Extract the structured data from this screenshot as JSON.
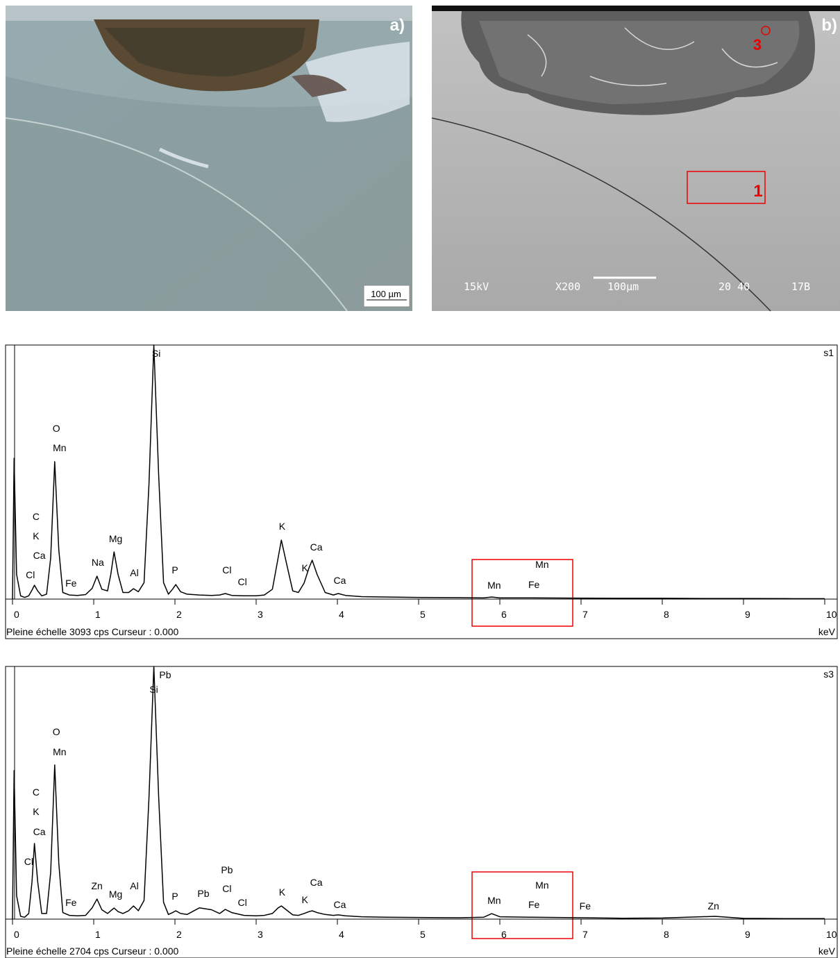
{
  "panels": [
    {
      "label": "a)",
      "scale": "100 µm"
    },
    {
      "label": "b)",
      "point": "3",
      "area": "1",
      "voltage": "15kV",
      "magnification": "X200",
      "scale": "100µm",
      "working_distance": "20 40",
      "session": "17B"
    }
  ],
  "chart_data": [
    {
      "type": "line",
      "label": "s1",
      "footer": "Pleine échelle 3093 cps  Curseur : 0.000",
      "xlabel": "keV",
      "xlim": [
        0,
        10
      ],
      "ylim": [
        0,
        3093
      ],
      "xticks": [
        0,
        1,
        2,
        3,
        4,
        5,
        6,
        7,
        8,
        9,
        10
      ],
      "color": "#000000",
      "x": [
        0,
        0.02,
        0.05,
        0.1,
        0.15,
        0.2,
        0.24,
        0.27,
        0.31,
        0.36,
        0.42,
        0.47,
        0.52,
        0.57,
        0.62,
        0.7,
        0.8,
        0.9,
        0.98,
        1.04,
        1.1,
        1.17,
        1.21,
        1.25,
        1.3,
        1.36,
        1.43,
        1.49,
        1.55,
        1.62,
        1.68,
        1.74,
        1.8,
        1.86,
        1.92,
        1.97,
        2.01,
        2.07,
        2.15,
        2.3,
        2.45,
        2.55,
        2.62,
        2.7,
        2.85,
        3.0,
        3.1,
        3.2,
        3.27,
        3.31,
        3.37,
        3.45,
        3.52,
        3.59,
        3.65,
        3.69,
        3.75,
        3.85,
        3.95,
        4.01,
        4.1,
        4.3,
        4.6,
        5.0,
        5.5,
        5.8,
        5.9,
        6.0,
        6.4,
        7.0,
        7.5,
        8.0,
        8.5,
        9.0,
        9.5,
        10.0
      ],
      "values": [
        0,
        1715,
        300,
        40,
        20,
        40,
        110,
        169,
        100,
        40,
        60,
        500,
        1673,
        600,
        80,
        50,
        45,
        55,
        130,
        279,
        120,
        100,
        300,
        575,
        300,
        80,
        80,
        127,
        90,
        200,
        1400,
        3093,
        1500,
        200,
        60,
        120,
        177,
        90,
        60,
        50,
        45,
        50,
        68,
        45,
        40,
        40,
        50,
        120,
        500,
        718,
        450,
        100,
        80,
        194,
        380,
        473,
        300,
        80,
        50,
        68,
        45,
        30,
        25,
        20,
        18,
        15,
        25,
        15,
        15,
        12,
        10,
        10,
        8,
        8,
        6,
        5
      ],
      "annotations": [
        {
          "text": "Si",
          "x": 1.77,
          "y": 2950
        },
        {
          "text": "O",
          "x": 0.54,
          "y": 2036
        },
        {
          "text": "Mn",
          "x": 0.58,
          "y": 1800
        },
        {
          "text": "C",
          "x": 0.29,
          "y": 963
        },
        {
          "text": "K",
          "x": 0.29,
          "y": 727
        },
        {
          "text": "Ca",
          "x": 0.33,
          "y": 490
        },
        {
          "text": "Cl",
          "x": 0.22,
          "y": 254
        },
        {
          "text": "Fe",
          "x": 0.72,
          "y": 152
        },
        {
          "text": "Na",
          "x": 1.05,
          "y": 406
        },
        {
          "text": "Mg",
          "x": 1.27,
          "y": 693
        },
        {
          "text": "Al",
          "x": 1.5,
          "y": 279
        },
        {
          "text": "P",
          "x": 2.0,
          "y": 313
        },
        {
          "text": "Cl",
          "x": 2.64,
          "y": 313
        },
        {
          "text": "Cl",
          "x": 2.83,
          "y": 169
        },
        {
          "text": "K",
          "x": 3.32,
          "y": 845
        },
        {
          "text": "Ca",
          "x": 3.74,
          "y": 592
        },
        {
          "text": "K",
          "x": 3.6,
          "y": 338
        },
        {
          "text": "Ca",
          "x": 4.03,
          "y": 186
        },
        {
          "text": "Mn",
          "x": 5.93,
          "y": 127
        },
        {
          "text": "Fe",
          "x": 6.42,
          "y": 135
        },
        {
          "text": "Mn",
          "x": 6.52,
          "y": 380
        }
      ]
    },
    {
      "type": "line",
      "label": "s3",
      "footer": "Pleine échelle 2704 cps  Curseur : 0.000",
      "xlabel": "keV",
      "xlim": [
        0,
        10
      ],
      "ylim": [
        0,
        2704
      ],
      "xticks": [
        0,
        1,
        2,
        3,
        4,
        5,
        6,
        7,
        8,
        9,
        10
      ],
      "color": "#000000",
      "x": [
        0,
        0.02,
        0.05,
        0.1,
        0.15,
        0.2,
        0.24,
        0.27,
        0.31,
        0.36,
        0.42,
        0.47,
        0.52,
        0.57,
        0.62,
        0.7,
        0.8,
        0.9,
        0.98,
        1.04,
        1.1,
        1.17,
        1.21,
        1.25,
        1.3,
        1.36,
        1.43,
        1.49,
        1.55,
        1.62,
        1.68,
        1.74,
        1.8,
        1.86,
        1.92,
        1.97,
        2.01,
        2.07,
        2.15,
        2.3,
        2.45,
        2.55,
        2.62,
        2.7,
        2.85,
        3.0,
        3.1,
        3.2,
        3.27,
        3.31,
        3.37,
        3.45,
        3.52,
        3.59,
        3.65,
        3.69,
        3.75,
        3.85,
        3.95,
        4.01,
        4.1,
        4.3,
        4.6,
        5.0,
        5.5,
        5.8,
        5.9,
        6.0,
        6.4,
        7.0,
        7.5,
        8.0,
        8.65,
        9.0,
        9.5,
        10.0
      ],
      "values": [
        0,
        1590,
        250,
        30,
        20,
        60,
        400,
        810,
        400,
        60,
        60,
        500,
        1650,
        600,
        70,
        40,
        35,
        40,
        120,
        215,
        100,
        60,
        90,
        119,
        80,
        60,
        90,
        141,
        90,
        200,
        1300,
        2704,
        1300,
        180,
        50,
        70,
        89,
        60,
        50,
        120,
        100,
        60,
        104,
        70,
        40,
        35,
        40,
        60,
        120,
        141,
        100,
        45,
        40,
        60,
        80,
        89,
        70,
        50,
        40,
        45,
        35,
        25,
        20,
        18,
        15,
        20,
        59,
        25,
        20,
        15,
        10,
        12,
        30,
        8,
        6,
        5
      ],
      "annotations": [
        {
          "text": "Pb",
          "x": 1.88,
          "y": 2578
        },
        {
          "text": "Si",
          "x": 1.74,
          "y": 2422
        },
        {
          "text": "O",
          "x": 0.54,
          "y": 1969
        },
        {
          "text": "Mn",
          "x": 0.58,
          "y": 1753
        },
        {
          "text": "C",
          "x": 0.29,
          "y": 1322
        },
        {
          "text": "K",
          "x": 0.29,
          "y": 1114
        },
        {
          "text": "Ca",
          "x": 0.33,
          "y": 899
        },
        {
          "text": "Cl",
          "x": 0.2,
          "y": 580
        },
        {
          "text": "Fe",
          "x": 0.72,
          "y": 141
        },
        {
          "text": "Zn",
          "x": 1.04,
          "y": 319
        },
        {
          "text": "Mg",
          "x": 1.27,
          "y": 230
        },
        {
          "text": "Al",
          "x": 1.5,
          "y": 319
        },
        {
          "text": "P",
          "x": 2.0,
          "y": 208
        },
        {
          "text": "Pb",
          "x": 2.35,
          "y": 238
        },
        {
          "text": "Pb",
          "x": 2.64,
          "y": 490
        },
        {
          "text": "Cl",
          "x": 2.64,
          "y": 290
        },
        {
          "text": "Cl",
          "x": 2.83,
          "y": 141
        },
        {
          "text": "K",
          "x": 3.32,
          "y": 253
        },
        {
          "text": "Ca",
          "x": 3.74,
          "y": 357
        },
        {
          "text": "K",
          "x": 3.6,
          "y": 171
        },
        {
          "text": "Ca",
          "x": 4.03,
          "y": 119
        },
        {
          "text": "Mn",
          "x": 5.93,
          "y": 163
        },
        {
          "text": "Fe",
          "x": 6.42,
          "y": 119
        },
        {
          "text": "Mn",
          "x": 6.52,
          "y": 327
        },
        {
          "text": "Fe",
          "x": 7.05,
          "y": 104
        },
        {
          "text": "Zn",
          "x": 8.63,
          "y": 104
        }
      ]
    }
  ]
}
